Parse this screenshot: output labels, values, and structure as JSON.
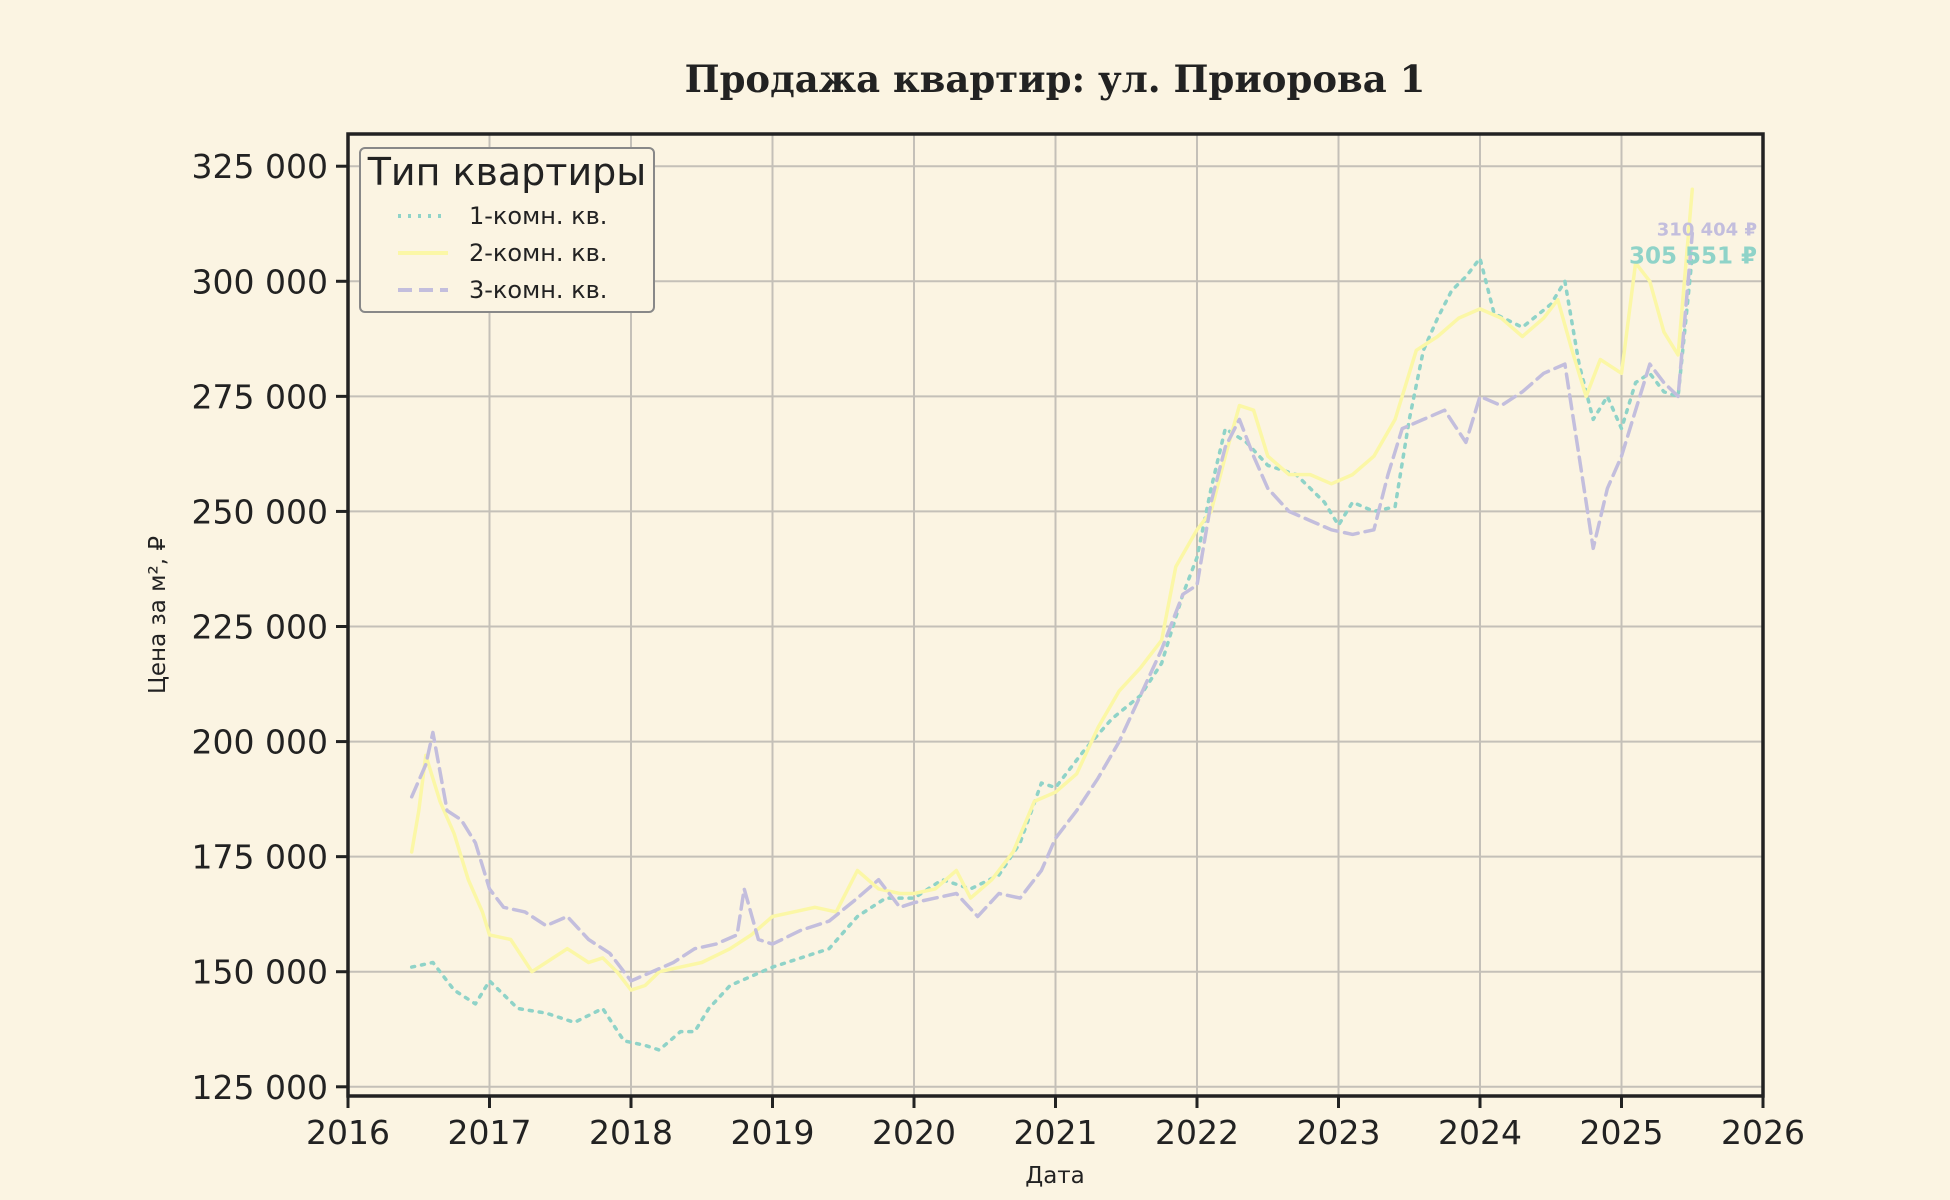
{
  "chart_data": {
    "type": "line",
    "title": "Продажа квартир: ул. Приорова 1",
    "xlabel": "Дата",
    "ylabel": "Цена за м², ₽",
    "xlim": [
      2016,
      2026
    ],
    "ylim": [
      123000,
      332000
    ],
    "x_ticks": [
      2016,
      2017,
      2018,
      2019,
      2020,
      2021,
      2022,
      2023,
      2024,
      2025,
      2026
    ],
    "y_ticks": [
      125000,
      150000,
      175000,
      200000,
      225000,
      250000,
      275000,
      300000,
      325000
    ],
    "y_tick_labels": [
      "125 000",
      "150 000",
      "175 000",
      "200 000",
      "225 000",
      "250 000",
      "275 000",
      "300 000",
      "325 000"
    ],
    "grid": true,
    "legend": {
      "title": "Тип квартиры",
      "position": "top-left"
    },
    "end_labels": [
      {
        "series": "3-комн. кв.",
        "text": "310 404 ₽",
        "value": 310404
      },
      {
        "series": "1-комн. кв.",
        "text": "305 551 ₽",
        "value": 305551
      }
    ],
    "series": [
      {
        "name": "1-комн. кв.",
        "color": "#8fd3c8",
        "style": "dotted",
        "x": [
          2016.45,
          2016.6,
          2016.75,
          2016.9,
          2017.0,
          2017.2,
          2017.4,
          2017.6,
          2017.8,
          2017.95,
          2018.1,
          2018.2,
          2018.35,
          2018.45,
          2018.55,
          2018.7,
          2018.85,
          2019.0,
          2019.2,
          2019.4,
          2019.6,
          2019.8,
          2020.0,
          2020.2,
          2020.4,
          2020.6,
          2020.75,
          2020.9,
          2021.0,
          2021.2,
          2021.4,
          2021.6,
          2021.75,
          2021.9,
          2022.0,
          2022.1,
          2022.2,
          2022.35,
          2022.5,
          2022.7,
          2022.9,
          2023.0,
          2023.1,
          2023.25,
          2023.4,
          2023.5,
          2023.6,
          2023.7,
          2023.8,
          2023.9,
          2024.0,
          2024.1,
          2024.3,
          2024.5,
          2024.6,
          2024.7,
          2024.8,
          2024.9,
          2025.0,
          2025.1,
          2025.2,
          2025.3,
          2025.4,
          2025.5
        ],
        "y": [
          151000,
          152000,
          146000,
          143000,
          148000,
          142000,
          141000,
          139000,
          142000,
          135000,
          134000,
          133000,
          137000,
          137000,
          142000,
          147000,
          149000,
          151000,
          153000,
          155000,
          162000,
          166000,
          166000,
          170000,
          168000,
          171000,
          178000,
          191000,
          190000,
          198000,
          205000,
          210000,
          217000,
          232000,
          240000,
          255000,
          268000,
          265000,
          260000,
          258000,
          252000,
          247000,
          252000,
          250000,
          251000,
          270000,
          285000,
          292000,
          298000,
          301000,
          305000,
          293000,
          290000,
          295000,
          300000,
          282000,
          270000,
          275000,
          268000,
          278000,
          280000,
          276000,
          275000,
          305551
        ]
      },
      {
        "name": "2-комн. кв.",
        "color": "#fbf7a6",
        "style": "solid",
        "x": [
          2016.45,
          2016.5,
          2016.55,
          2016.65,
          2016.75,
          2016.85,
          2016.95,
          2017.0,
          2017.15,
          2017.3,
          2017.4,
          2017.55,
          2017.7,
          2017.8,
          2017.9,
          2018.0,
          2018.1,
          2018.2,
          2018.35,
          2018.5,
          2018.7,
          2018.85,
          2019.0,
          2019.15,
          2019.3,
          2019.45,
          2019.6,
          2019.75,
          2019.9,
          2020.0,
          2020.15,
          2020.3,
          2020.4,
          2020.55,
          2020.7,
          2020.85,
          2021.0,
          2021.15,
          2021.3,
          2021.45,
          2021.6,
          2021.75,
          2021.85,
          2022.0,
          2022.1,
          2022.2,
          2022.3,
          2022.4,
          2022.5,
          2022.65,
          2022.8,
          2022.95,
          2023.1,
          2023.25,
          2023.4,
          2023.55,
          2023.7,
          2023.85,
          2024.0,
          2024.15,
          2024.3,
          2024.45,
          2024.55,
          2024.65,
          2024.75,
          2024.85,
          2025.0,
          2025.1,
          2025.2,
          2025.3,
          2025.4,
          2025.5
        ],
        "y": [
          176000,
          185000,
          197000,
          187000,
          180000,
          170000,
          163000,
          158000,
          157000,
          150000,
          152000,
          155000,
          152000,
          153000,
          150000,
          146000,
          147000,
          150000,
          151000,
          152000,
          155000,
          158000,
          162000,
          163000,
          164000,
          163000,
          172000,
          168000,
          167000,
          167000,
          168000,
          172000,
          166000,
          170000,
          176000,
          187000,
          189000,
          193000,
          203000,
          211000,
          216000,
          222000,
          238000,
          246000,
          250000,
          262000,
          273000,
          272000,
          262000,
          258000,
          258000,
          256000,
          258000,
          262000,
          270000,
          285000,
          288000,
          292000,
          294000,
          292000,
          288000,
          292000,
          296000,
          285000,
          275000,
          283000,
          280000,
          304000,
          300000,
          289000,
          284000,
          320000
        ]
      },
      {
        "name": "3-комн. кв.",
        "color": "#c3bedd",
        "style": "dashed",
        "x": [
          2016.45,
          2016.55,
          2016.6,
          2016.7,
          2016.8,
          2016.9,
          2017.0,
          2017.1,
          2017.25,
          2017.4,
          2017.55,
          2017.7,
          2017.85,
          2018.0,
          2018.15,
          2018.3,
          2018.45,
          2018.6,
          2018.75,
          2018.8,
          2018.9,
          2019.0,
          2019.2,
          2019.4,
          2019.6,
          2019.75,
          2019.9,
          2020.0,
          2020.15,
          2020.3,
          2020.45,
          2020.6,
          2020.75,
          2020.9,
          2021.0,
          2021.15,
          2021.3,
          2021.45,
          2021.6,
          2021.75,
          2021.9,
          2022.0,
          2022.1,
          2022.2,
          2022.3,
          2022.4,
          2022.5,
          2022.65,
          2022.8,
          2022.95,
          2023.1,
          2023.25,
          2023.35,
          2023.45,
          2023.6,
          2023.75,
          2023.9,
          2024.0,
          2024.15,
          2024.3,
          2024.45,
          2024.6,
          2024.7,
          2024.8,
          2024.9,
          2025.0,
          2025.1,
          2025.2,
          2025.3,
          2025.4,
          2025.5
        ],
        "y": [
          188000,
          195000,
          202000,
          185000,
          183000,
          178000,
          168000,
          164000,
          163000,
          160000,
          162000,
          157000,
          154000,
          148000,
          150000,
          152000,
          155000,
          156000,
          158000,
          168000,
          157000,
          156000,
          159000,
          161000,
          166000,
          170000,
          164000,
          165000,
          166000,
          167000,
          162000,
          167000,
          166000,
          172000,
          179000,
          185000,
          192000,
          200000,
          210000,
          220000,
          232000,
          234000,
          252000,
          264000,
          270000,
          262000,
          255000,
          250000,
          248000,
          246000,
          245000,
          246000,
          258000,
          268000,
          270000,
          272000,
          265000,
          275000,
          273000,
          276000,
          280000,
          282000,
          262000,
          242000,
          255000,
          262000,
          272000,
          282000,
          278000,
          275000,
          310404
        ]
      }
    ]
  }
}
